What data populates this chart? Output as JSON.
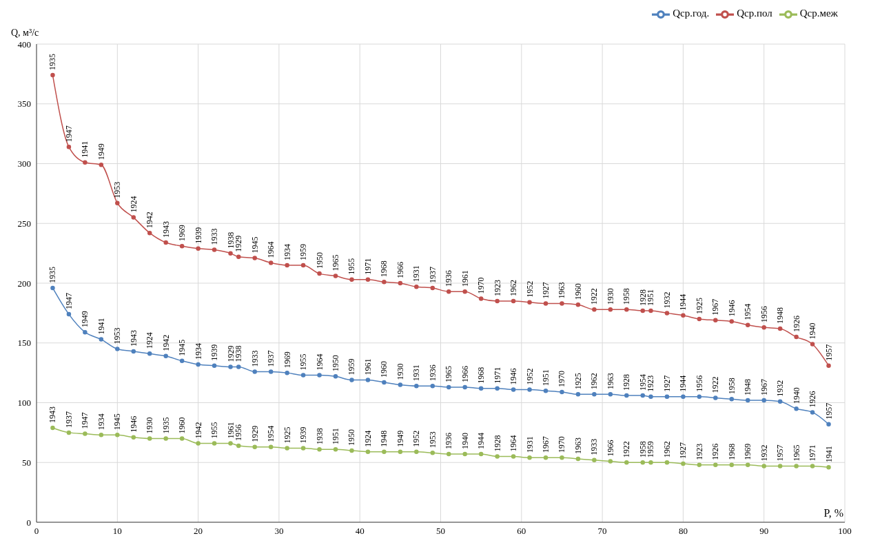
{
  "chart_data": {
    "type": "line",
    "xlabel": "P, %",
    "ylabel": "Q, м³/с",
    "x": [
      2,
      4,
      6,
      8,
      10,
      12,
      14,
      16,
      18,
      20,
      22,
      24,
      25,
      27,
      29,
      31,
      33,
      35,
      37,
      39,
      41,
      43,
      45,
      47,
      49,
      51,
      53,
      55,
      57,
      59,
      61,
      63,
      65,
      67,
      69,
      71,
      73,
      75,
      76,
      78,
      80,
      82,
      84,
      86,
      88,
      90,
      92,
      94,
      96,
      98
    ],
    "xlim": [
      0,
      100
    ],
    "xticks": [
      0,
      10,
      20,
      30,
      40,
      50,
      60,
      70,
      80,
      90,
      100
    ],
    "ylim": [
      0,
      400
    ],
    "yticks": [
      0,
      50,
      100,
      150,
      200,
      250,
      300,
      350,
      400
    ],
    "grid": true,
    "legend": "top right",
    "marker": "circle",
    "line_style": "solid",
    "series": [
      {
        "name": "Qср.год.",
        "color": "#4f81bd",
        "values": [
          196,
          174,
          159,
          153,
          145,
          143,
          141,
          139,
          135,
          132,
          131,
          130,
          130,
          126,
          126,
          125,
          123,
          123,
          122,
          119,
          119,
          117,
          115,
          114,
          114,
          113,
          113,
          112,
          112,
          111,
          111,
          110,
          109,
          107,
          107,
          107,
          106,
          106,
          105,
          105,
          105,
          105,
          104,
          103,
          102,
          102,
          101,
          95,
          92,
          82
        ]
      },
      {
        "name": "Qср.пол",
        "color": "#c0504d",
        "values": [
          374,
          314,
          301,
          299,
          267,
          255,
          242,
          234,
          231,
          229,
          228,
          225,
          222,
          221,
          217,
          215,
          215,
          208,
          206,
          203,
          203,
          201,
          200,
          197,
          196,
          193,
          193,
          187,
          185,
          185,
          184,
          183,
          183,
          182,
          178,
          178,
          178,
          177,
          177,
          175,
          173,
          170,
          169,
          168,
          165,
          163,
          162,
          155,
          149,
          131
        ]
      },
      {
        "name": "Qср.меж",
        "color": "#9bbb59",
        "values": [
          79,
          75,
          74,
          73,
          73,
          71,
          70,
          70,
          70,
          66,
          66,
          66,
          64,
          63,
          63,
          62,
          62,
          61,
          61,
          60,
          59,
          59,
          59,
          59,
          58,
          57,
          57,
          57,
          55,
          55,
          54,
          54,
          54,
          53,
          52,
          51,
          50,
          50,
          50,
          50,
          49,
          48,
          48,
          48,
          48,
          47,
          47,
          47,
          47,
          46
        ]
      }
    ],
    "annotations": [
      {
        "text": "1935",
        "x": 2,
        "y": 196
      },
      {
        "text": "1947",
        "x": 4,
        "y": 174
      },
      {
        "text": "1949",
        "x": 6,
        "y": 159
      },
      {
        "text": "1941",
        "x": 8,
        "y": 153
      },
      {
        "text": "1953",
        "x": 10,
        "y": 145
      },
      {
        "text": "1943",
        "x": 12,
        "y": 143
      },
      {
        "text": "1924",
        "x": 14,
        "y": 141
      },
      {
        "text": "1942",
        "x": 16,
        "y": 139
      },
      {
        "text": "1945",
        "x": 18,
        "y": 135
      },
      {
        "text": "1934",
        "x": 20,
        "y": 132
      },
      {
        "text": "1939",
        "x": 22,
        "y": 131
      },
      {
        "text": "1929",
        "x": 24,
        "y": 130
      },
      {
        "text": "1938",
        "x": 25,
        "y": 130
      },
      {
        "text": "1933",
        "x": 27,
        "y": 126
      },
      {
        "text": "1937",
        "x": 29,
        "y": 126
      },
      {
        "text": "1969",
        "x": 31,
        "y": 125
      },
      {
        "text": "1955",
        "x": 33,
        "y": 123
      },
      {
        "text": "1964",
        "x": 35,
        "y": 123
      },
      {
        "text": "1950",
        "x": 37,
        "y": 122
      },
      {
        "text": "1959",
        "x": 39,
        "y": 119
      },
      {
        "text": "1961",
        "x": 41,
        "y": 119
      },
      {
        "text": "1960",
        "x": 43,
        "y": 117
      },
      {
        "text": "1930",
        "x": 45,
        "y": 115
      },
      {
        "text": "1931",
        "x": 47,
        "y": 114
      },
      {
        "text": "1936",
        "x": 49,
        "y": 114
      },
      {
        "text": "1965",
        "x": 51,
        "y": 113
      },
      {
        "text": "1966",
        "x": 53,
        "y": 113
      },
      {
        "text": "1968",
        "x": 55,
        "y": 112
      },
      {
        "text": "1971",
        "x": 57,
        "y": 112
      },
      {
        "text": "1946",
        "x": 59,
        "y": 111
      },
      {
        "text": "1952",
        "x": 61,
        "y": 111
      },
      {
        "text": "1951",
        "x": 63,
        "y": 110
      },
      {
        "text": "1970",
        "x": 65,
        "y": 109
      },
      {
        "text": "1925",
        "x": 67,
        "y": 107
      },
      {
        "text": "1962",
        "x": 69,
        "y": 107
      },
      {
        "text": "1963",
        "x": 71,
        "y": 107
      },
      {
        "text": "1928",
        "x": 73,
        "y": 106
      },
      {
        "text": "1954",
        "x": 75,
        "y": 106
      },
      {
        "text": "1923",
        "x": 76,
        "y": 105
      },
      {
        "text": "1927",
        "x": 78,
        "y": 105
      },
      {
        "text": "1944",
        "x": 80,
        "y": 105
      },
      {
        "text": "1956",
        "x": 82,
        "y": 105
      },
      {
        "text": "1922",
        "x": 84,
        "y": 104
      },
      {
        "text": "1958",
        "x": 86,
        "y": 103
      },
      {
        "text": "1948",
        "x": 88,
        "y": 102
      },
      {
        "text": "1967",
        "x": 90,
        "y": 102
      },
      {
        "text": "1932",
        "x": 92,
        "y": 101
      },
      {
        "text": "1940",
        "x": 94,
        "y": 95
      },
      {
        "text": "1926",
        "x": 96,
        "y": 92
      },
      {
        "text": "1957",
        "x": 98,
        "y": 82
      },
      {
        "text": "1935",
        "x": 2,
        "y": 374
      },
      {
        "text": "1947",
        "x": 4,
        "y": 314
      },
      {
        "text": "1941",
        "x": 6,
        "y": 301
      },
      {
        "text": "1949",
        "x": 8,
        "y": 299
      },
      {
        "text": "1953",
        "x": 10,
        "y": 267
      },
      {
        "text": "1924",
        "x": 12,
        "y": 255
      },
      {
        "text": "1942",
        "x": 14,
        "y": 242
      },
      {
        "text": "1943",
        "x": 16,
        "y": 234
      },
      {
        "text": "1969",
        "x": 18,
        "y": 231
      },
      {
        "text": "1939",
        "x": 20,
        "y": 229
      },
      {
        "text": "1933",
        "x": 22,
        "y": 228
      },
      {
        "text": "1938",
        "x": 24,
        "y": 225
      },
      {
        "text": "1929",
        "x": 25,
        "y": 222
      },
      {
        "text": "1945",
        "x": 27,
        "y": 221
      },
      {
        "text": "1964",
        "x": 29,
        "y": 217
      },
      {
        "text": "1934",
        "x": 31,
        "y": 215
      },
      {
        "text": "1959",
        "x": 33,
        "y": 215
      },
      {
        "text": "1950",
        "x": 35,
        "y": 208
      },
      {
        "text": "1965",
        "x": 37,
        "y": 206
      },
      {
        "text": "1955",
        "x": 39,
        "y": 203
      },
      {
        "text": "1971",
        "x": 41,
        "y": 203
      },
      {
        "text": "1968",
        "x": 43,
        "y": 201
      },
      {
        "text": "1966",
        "x": 45,
        "y": 200
      },
      {
        "text": "1931",
        "x": 47,
        "y": 197
      },
      {
        "text": "1937",
        "x": 49,
        "y": 196
      },
      {
        "text": "1936",
        "x": 51,
        "y": 193
      },
      {
        "text": "1961",
        "x": 53,
        "y": 193
      },
      {
        "text": "1970",
        "x": 55,
        "y": 187
      },
      {
        "text": "1923",
        "x": 57,
        "y": 185
      },
      {
        "text": "1962",
        "x": 59,
        "y": 185
      },
      {
        "text": "1952",
        "x": 61,
        "y": 184
      },
      {
        "text": "1927",
        "x": 63,
        "y": 183
      },
      {
        "text": "1963",
        "x": 65,
        "y": 183
      },
      {
        "text": "1960",
        "x": 67,
        "y": 182
      },
      {
        "text": "1922",
        "x": 69,
        "y": 178
      },
      {
        "text": "1930",
        "x": 71,
        "y": 178
      },
      {
        "text": "1958",
        "x": 73,
        "y": 178
      },
      {
        "text": "1928",
        "x": 75,
        "y": 177
      },
      {
        "text": "1951",
        "x": 76,
        "y": 177
      },
      {
        "text": "1932",
        "x": 78,
        "y": 175
      },
      {
        "text": "1944",
        "x": 80,
        "y": 173
      },
      {
        "text": "1925",
        "x": 82,
        "y": 170
      },
      {
        "text": "1967",
        "x": 84,
        "y": 169
      },
      {
        "text": "1946",
        "x": 86,
        "y": 168
      },
      {
        "text": "1954",
        "x": 88,
        "y": 165
      },
      {
        "text": "1956",
        "x": 90,
        "y": 163
      },
      {
        "text": "1948",
        "x": 92,
        "y": 162
      },
      {
        "text": "1926",
        "x": 94,
        "y": 155
      },
      {
        "text": "1940",
        "x": 96,
        "y": 149
      },
      {
        "text": "1957",
        "x": 98,
        "y": 131
      },
      {
        "text": "1943",
        "x": 2,
        "y": 79
      },
      {
        "text": "1937",
        "x": 4,
        "y": 75
      },
      {
        "text": "1947",
        "x": 6,
        "y": 74
      },
      {
        "text": "1934",
        "x": 8,
        "y": 73
      },
      {
        "text": "1945",
        "x": 10,
        "y": 73
      },
      {
        "text": "1946",
        "x": 12,
        "y": 71
      },
      {
        "text": "1930",
        "x": 14,
        "y": 70
      },
      {
        "text": "1935",
        "x": 16,
        "y": 70
      },
      {
        "text": "1960",
        "x": 18,
        "y": 70
      },
      {
        "text": "1942",
        "x": 20,
        "y": 66
      },
      {
        "text": "1955",
        "x": 22,
        "y": 66
      },
      {
        "text": "1961",
        "x": 24,
        "y": 66
      },
      {
        "text": "1956",
        "x": 25,
        "y": 64
      },
      {
        "text": "1929",
        "x": 27,
        "y": 63
      },
      {
        "text": "1954",
        "x": 29,
        "y": 63
      },
      {
        "text": "1925",
        "x": 31,
        "y": 62
      },
      {
        "text": "1939",
        "x": 33,
        "y": 62
      },
      {
        "text": "1938",
        "x": 35,
        "y": 61
      },
      {
        "text": "1951",
        "x": 37,
        "y": 61
      },
      {
        "text": "1950",
        "x": 39,
        "y": 60
      },
      {
        "text": "1924",
        "x": 41,
        "y": 59
      },
      {
        "text": "1948",
        "x": 43,
        "y": 59
      },
      {
        "text": "1949",
        "x": 45,
        "y": 59
      },
      {
        "text": "1952",
        "x": 47,
        "y": 59
      },
      {
        "text": "1953",
        "x": 49,
        "y": 58
      },
      {
        "text": "1936",
        "x": 51,
        "y": 57
      },
      {
        "text": "1940",
        "x": 53,
        "y": 57
      },
      {
        "text": "1944",
        "x": 55,
        "y": 57
      },
      {
        "text": "1928",
        "x": 57,
        "y": 55
      },
      {
        "text": "1964",
        "x": 59,
        "y": 55
      },
      {
        "text": "1931",
        "x": 61,
        "y": 54
      },
      {
        "text": "1967",
        "x": 63,
        "y": 54
      },
      {
        "text": "1970",
        "x": 65,
        "y": 54
      },
      {
        "text": "1963",
        "x": 67,
        "y": 53
      },
      {
        "text": "1933",
        "x": 69,
        "y": 52
      },
      {
        "text": "1966",
        "x": 71,
        "y": 51
      },
      {
        "text": "1922",
        "x": 73,
        "y": 50
      },
      {
        "text": "1958",
        "x": 75,
        "y": 50
      },
      {
        "text": "1959",
        "x": 76,
        "y": 50
      },
      {
        "text": "1962",
        "x": 78,
        "y": 50
      },
      {
        "text": "1927",
        "x": 80,
        "y": 49
      },
      {
        "text": "1923",
        "x": 82,
        "y": 48
      },
      {
        "text": "1926",
        "x": 84,
        "y": 48
      },
      {
        "text": "1968",
        "x": 86,
        "y": 48
      },
      {
        "text": "1969",
        "x": 88,
        "y": 48
      },
      {
        "text": "1932",
        "x": 90,
        "y": 47
      },
      {
        "text": "1957",
        "x": 92,
        "y": 47
      },
      {
        "text": "1965",
        "x": 94,
        "y": 47
      },
      {
        "text": "1971",
        "x": 96,
        "y": 47
      },
      {
        "text": "1941",
        "x": 98,
        "y": 46
      }
    ]
  }
}
